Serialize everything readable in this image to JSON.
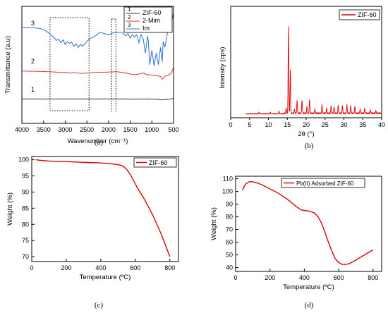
{
  "chart_data": [
    {
      "type": "line",
      "caption": "(a)",
      "xlabel": "Wavenumber (cm⁻¹)",
      "ylabel": "Transmittance (a.u)",
      "xlim": [
        4000,
        500
      ],
      "xticks": [
        4000,
        3500,
        3000,
        2500,
        2000,
        1500,
        1000,
        500
      ],
      "xtick_labels": [
        "4000",
        "3500",
        "3000",
        "2500",
        "2000",
        "1500",
        "1000",
        "500"
      ],
      "legend": {
        "position": "top-right",
        "entries": [
          {
            "num": "1",
            "name": "ZIF-60"
          },
          {
            "num": "2",
            "name": "2-Mim"
          },
          {
            "num": "3",
            "name": "Im"
          }
        ]
      },
      "series": [
        {
          "name": "ZIF-60",
          "curve_label": "1",
          "color": "#333333",
          "x": [
            4000,
            3800,
            3600,
            3400,
            3200,
            3000,
            2800,
            2600,
            2400,
            2200,
            2000,
            1800,
            1600,
            1500,
            1400,
            1300,
            1200,
            1100,
            1000,
            900,
            800,
            760,
            700,
            600,
            550,
            530,
            510
          ],
          "y": [
            0.1,
            0.1,
            0.1,
            0.095,
            0.1,
            0.1,
            0.1,
            0.1,
            0.1,
            0.1,
            0.1,
            0.1,
            0.1,
            0.095,
            0.09,
            0.1,
            0.09,
            0.1,
            0.09,
            0.08,
            0.05,
            0.01,
            0.05,
            0.08,
            0.1,
            0.14,
            0.16
          ]
        },
        {
          "name": "2-Mim",
          "curve_label": "2",
          "color": "#e03030",
          "x": [
            4000,
            3600,
            3400,
            3200,
            3100,
            3000,
            2900,
            2800,
            2700,
            2600,
            2500,
            2400,
            2200,
            2000,
            1800,
            1600,
            1500,
            1400,
            1300,
            1200,
            1100,
            1000,
            900,
            800,
            760,
            700,
            600,
            550,
            520,
            510
          ],
          "y": [
            0.36,
            0.35,
            0.34,
            0.33,
            0.31,
            0.32,
            0.3,
            0.31,
            0.3,
            0.29,
            0.3,
            0.31,
            0.32,
            0.33,
            0.34,
            0.3,
            0.27,
            0.25,
            0.27,
            0.3,
            0.25,
            0.24,
            0.22,
            0.2,
            0.12,
            0.2,
            0.25,
            0.3,
            0.4,
            0.46
          ]
        },
        {
          "name": "Im",
          "curve_label": "3",
          "color": "#2f6fd6",
          "x": [
            4000,
            3800,
            3600,
            3500,
            3400,
            3300,
            3200,
            3150,
            3100,
            3050,
            3000,
            2950,
            2900,
            2850,
            2800,
            2750,
            2700,
            2650,
            2600,
            2550,
            2500,
            2450,
            2400,
            2300,
            2200,
            2100,
            2000,
            1900,
            1800,
            1700,
            1600,
            1550,
            1500,
            1450,
            1400,
            1350,
            1300,
            1250,
            1200,
            1150,
            1100,
            1080,
            1050,
            1000,
            950,
            900,
            850,
            800,
            760,
            740,
            700,
            650,
            600,
            560,
            540,
            520,
            510
          ],
          "y": [
            0.74,
            0.74,
            0.73,
            0.71,
            0.66,
            0.6,
            0.52,
            0.54,
            0.48,
            0.53,
            0.45,
            0.5,
            0.47,
            0.49,
            0.42,
            0.46,
            0.4,
            0.45,
            0.42,
            0.46,
            0.5,
            0.54,
            0.56,
            0.6,
            0.66,
            0.64,
            0.62,
            0.65,
            0.66,
            0.66,
            0.6,
            0.64,
            0.56,
            0.62,
            0.58,
            0.62,
            0.48,
            0.62,
            0.55,
            0.3,
            0.6,
            0.5,
            0.1,
            0.35,
            0.08,
            0.3,
            0.1,
            0.4,
            0.15,
            0.5,
            0.4,
            0.62,
            0.72,
            0.8,
            0.86,
            0.92,
            0.98
          ]
        }
      ]
    },
    {
      "type": "line",
      "caption": "(b)",
      "xlabel": "2θ (°)",
      "ylabel": "Intensity (cps)",
      "xlim": [
        0,
        40
      ],
      "xticks": [
        0,
        5,
        10,
        15,
        20,
        25,
        30,
        35,
        40
      ],
      "legend": {
        "position": "top-right",
        "entries": [
          {
            "name": "ZIF-60"
          }
        ]
      },
      "series": [
        {
          "name": "ZIF-60",
          "color": "#e00000",
          "peaks": [
            {
              "x": 7.5,
              "h": 0.02
            },
            {
              "x": 10.5,
              "h": 0.02
            },
            {
              "x": 12.8,
              "h": 0.03
            },
            {
              "x": 14.7,
              "h": 0.06
            },
            {
              "x": 15.3,
              "h": 1.0
            },
            {
              "x": 15.8,
              "h": 0.5
            },
            {
              "x": 16.9,
              "h": 0.05
            },
            {
              "x": 17.6,
              "h": 0.15
            },
            {
              "x": 18.9,
              "h": 0.15
            },
            {
              "x": 20.2,
              "h": 0.08
            },
            {
              "x": 20.9,
              "h": 0.16
            },
            {
              "x": 22.3,
              "h": 0.05
            },
            {
              "x": 24.2,
              "h": 0.1
            },
            {
              "x": 25.4,
              "h": 0.06
            },
            {
              "x": 26.6,
              "h": 0.09
            },
            {
              "x": 27.4,
              "h": 0.07
            },
            {
              "x": 28.5,
              "h": 0.1
            },
            {
              "x": 29.6,
              "h": 0.09
            },
            {
              "x": 30.8,
              "h": 0.1
            },
            {
              "x": 31.8,
              "h": 0.09
            },
            {
              "x": 32.9,
              "h": 0.08
            },
            {
              "x": 34.3,
              "h": 0.05
            },
            {
              "x": 35.5,
              "h": 0.06
            },
            {
              "x": 37.0,
              "h": 0.04
            },
            {
              "x": 38.5,
              "h": 0.03
            }
          ]
        }
      ]
    },
    {
      "type": "line",
      "caption": "(c)",
      "xlabel": "Temperature (ºC)",
      "ylabel": "Weight (%)",
      "xlim": [
        0,
        850
      ],
      "ylim": [
        68.5,
        101
      ],
      "xticks": [
        0,
        200,
        400,
        600,
        800
      ],
      "yticks": [
        70,
        75,
        80,
        85,
        90,
        95,
        100
      ],
      "legend": {
        "position": "top-right",
        "entries": [
          {
            "name": "ZIF-60"
          }
        ]
      },
      "series": [
        {
          "name": "ZIF-60",
          "color": "#e00000",
          "x": [
            25,
            50,
            100,
            150,
            200,
            250,
            300,
            350,
            400,
            450,
            500,
            530,
            550,
            570,
            590,
            610,
            650,
            700,
            750,
            800
          ],
          "y": [
            100.0,
            99.8,
            99.6,
            99.5,
            99.4,
            99.3,
            99.2,
            99.1,
            99.0,
            98.8,
            98.5,
            98.0,
            97.0,
            95.5,
            93.5,
            91.5,
            88.0,
            83.0,
            77.0,
            70.0
          ]
        }
      ]
    },
    {
      "type": "line",
      "caption": "(d)",
      "xlabel": "Temperature (ºC)",
      "ylabel": "Weight (%)",
      "xlim": [
        0,
        850
      ],
      "ylim": [
        37,
        112
      ],
      "xticks": [
        0,
        200,
        400,
        600,
        800
      ],
      "yticks": [
        40,
        50,
        60,
        70,
        80,
        90,
        100,
        110
      ],
      "legend": {
        "position": "top-left",
        "entries": [
          {
            "name": "Pb(II) Adsorbed ZIF-60"
          }
        ]
      },
      "series": [
        {
          "name": "Pb(II) Adsorbed ZIF-60",
          "color": "#e00000",
          "x": [
            40,
            50,
            60,
            80,
            100,
            130,
            160,
            200,
            250,
            300,
            350,
            380,
            400,
            430,
            460,
            480,
            500,
            520,
            540,
            560,
            580,
            600,
            620,
            640,
            660,
            700,
            750,
            800
          ],
          "y": [
            101,
            104,
            106,
            107.8,
            107.6,
            106.5,
            104.8,
            102,
            98.5,
            94,
            88.5,
            85.5,
            85,
            84.5,
            83,
            80,
            75,
            68,
            60,
            53,
            47,
            44,
            42.5,
            42.5,
            43,
            46,
            50,
            54
          ]
        }
      ]
    }
  ]
}
